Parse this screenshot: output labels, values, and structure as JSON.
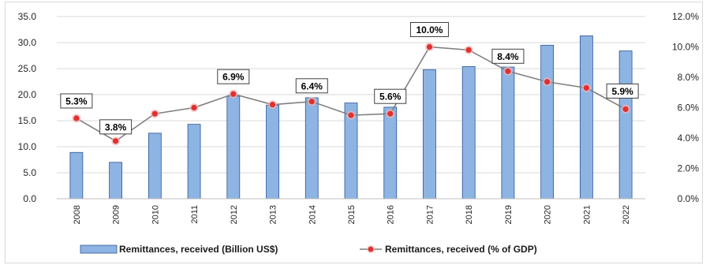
{
  "chart_data": {
    "type": "bar",
    "title": "",
    "xlabel": "",
    "ylabel": "",
    "categories": [
      "2008",
      "2009",
      "2010",
      "2011",
      "2012",
      "2013",
      "2014",
      "2015",
      "2016",
      "2017",
      "2018",
      "2019",
      "2020",
      "2021",
      "2022"
    ],
    "series": [
      {
        "name": "Remittances, received (Billion  US$)",
        "type": "bar",
        "axis": "left",
        "values": [
          8.9,
          7.0,
          12.6,
          14.3,
          19.7,
          18.0,
          19.4,
          18.4,
          17.6,
          24.8,
          25.4,
          25.3,
          29.5,
          31.3,
          28.4
        ]
      },
      {
        "name": "Remittances, received (% of GDP)",
        "type": "line",
        "axis": "right",
        "values": [
          5.3,
          3.8,
          5.6,
          6.0,
          6.9,
          6.2,
          6.4,
          5.5,
          5.6,
          10.0,
          9.8,
          8.4,
          7.7,
          7.3,
          5.9
        ]
      }
    ],
    "data_labels": [
      {
        "category": "2008",
        "text": "5.3%"
      },
      {
        "category": "2009",
        "text": "3.8%"
      },
      {
        "category": "2012",
        "text": "6.9%"
      },
      {
        "category": "2014",
        "text": "6.4%"
      },
      {
        "category": "2016",
        "text": "5.6%"
      },
      {
        "category": "2017",
        "text": "10.0%"
      },
      {
        "category": "2019",
        "text": "8.4%"
      },
      {
        "category": "2022",
        "text": "5.9%"
      }
    ],
    "y_left": {
      "range": [
        0,
        35
      ],
      "ticks": [
        "0.0",
        "5.0",
        "10.0",
        "15.0",
        "20.0",
        "25.0",
        "30.0",
        "35.0"
      ]
    },
    "y_right": {
      "range": [
        0,
        12
      ],
      "ticks": [
        "0.0%",
        "2.0%",
        "4.0%",
        "6.0%",
        "8.0%",
        "10.0%",
        "12.0%"
      ]
    },
    "grid": true,
    "legend_position": "bottom",
    "colors": {
      "bar_fill": "#8db4e2",
      "bar_stroke": "#2f5597",
      "line": "#7f7f7f",
      "marker": "#e0302f",
      "grid": "#d9d9d9"
    }
  }
}
